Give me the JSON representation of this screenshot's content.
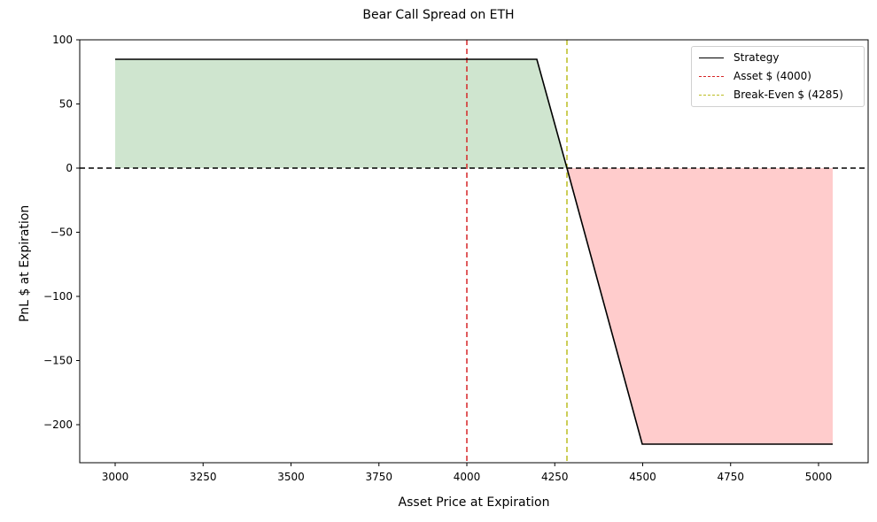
{
  "chart_data": {
    "type": "line",
    "title": "Bear Call Spread on ETH",
    "xlabel": "Asset Price at Expiration",
    "ylabel": "PnL $ at Expiration",
    "xlim": [
      2900,
      5140
    ],
    "ylim": [
      -230,
      100
    ],
    "x_ticks": [
      3000,
      3250,
      3500,
      3750,
      4000,
      4250,
      4500,
      4750,
      5000
    ],
    "y_ticks": [
      100,
      50,
      0,
      -50,
      -100,
      -150,
      -200
    ],
    "y_tick_labels": [
      "100",
      "50",
      "0",
      "−50",
      "−100",
      "−150",
      "−200"
    ],
    "grid": false,
    "legend_position": "upper right",
    "series": [
      {
        "name": "Strategy",
        "style": "solid",
        "color": "#000000",
        "x": [
          3000,
          4200,
          4285,
          4500,
          5040
        ],
        "y": [
          85,
          85,
          0,
          -215,
          -215
        ]
      }
    ],
    "vertical_lines": [
      {
        "name": "Asset $ (4000)",
        "x": 4000,
        "color": "#d62728",
        "style": "dashed"
      },
      {
        "name": "Break-Even $ (4285)",
        "x": 4285,
        "color": "#bcbd22",
        "style": "dashed"
      }
    ],
    "horizontal_lines": [
      {
        "y": 0,
        "color": "#000000",
        "style": "dashed"
      }
    ],
    "fills": [
      {
        "region": "profit",
        "x_range": [
          3000,
          4285
        ],
        "color": "#cfe5cf"
      },
      {
        "region": "loss",
        "x_range": [
          4285,
          5040
        ],
        "color": "#ffcccc"
      }
    ],
    "annotations": {
      "max_profit": 85,
      "max_loss": -215,
      "short_strike": 4200,
      "long_strike": 4500,
      "break_even": 4285,
      "asset_price": 4000
    }
  },
  "legend": {
    "strategy": "Strategy",
    "asset": "Asset $ (4000)",
    "breakeven": "Break-Even $ (4285)"
  }
}
